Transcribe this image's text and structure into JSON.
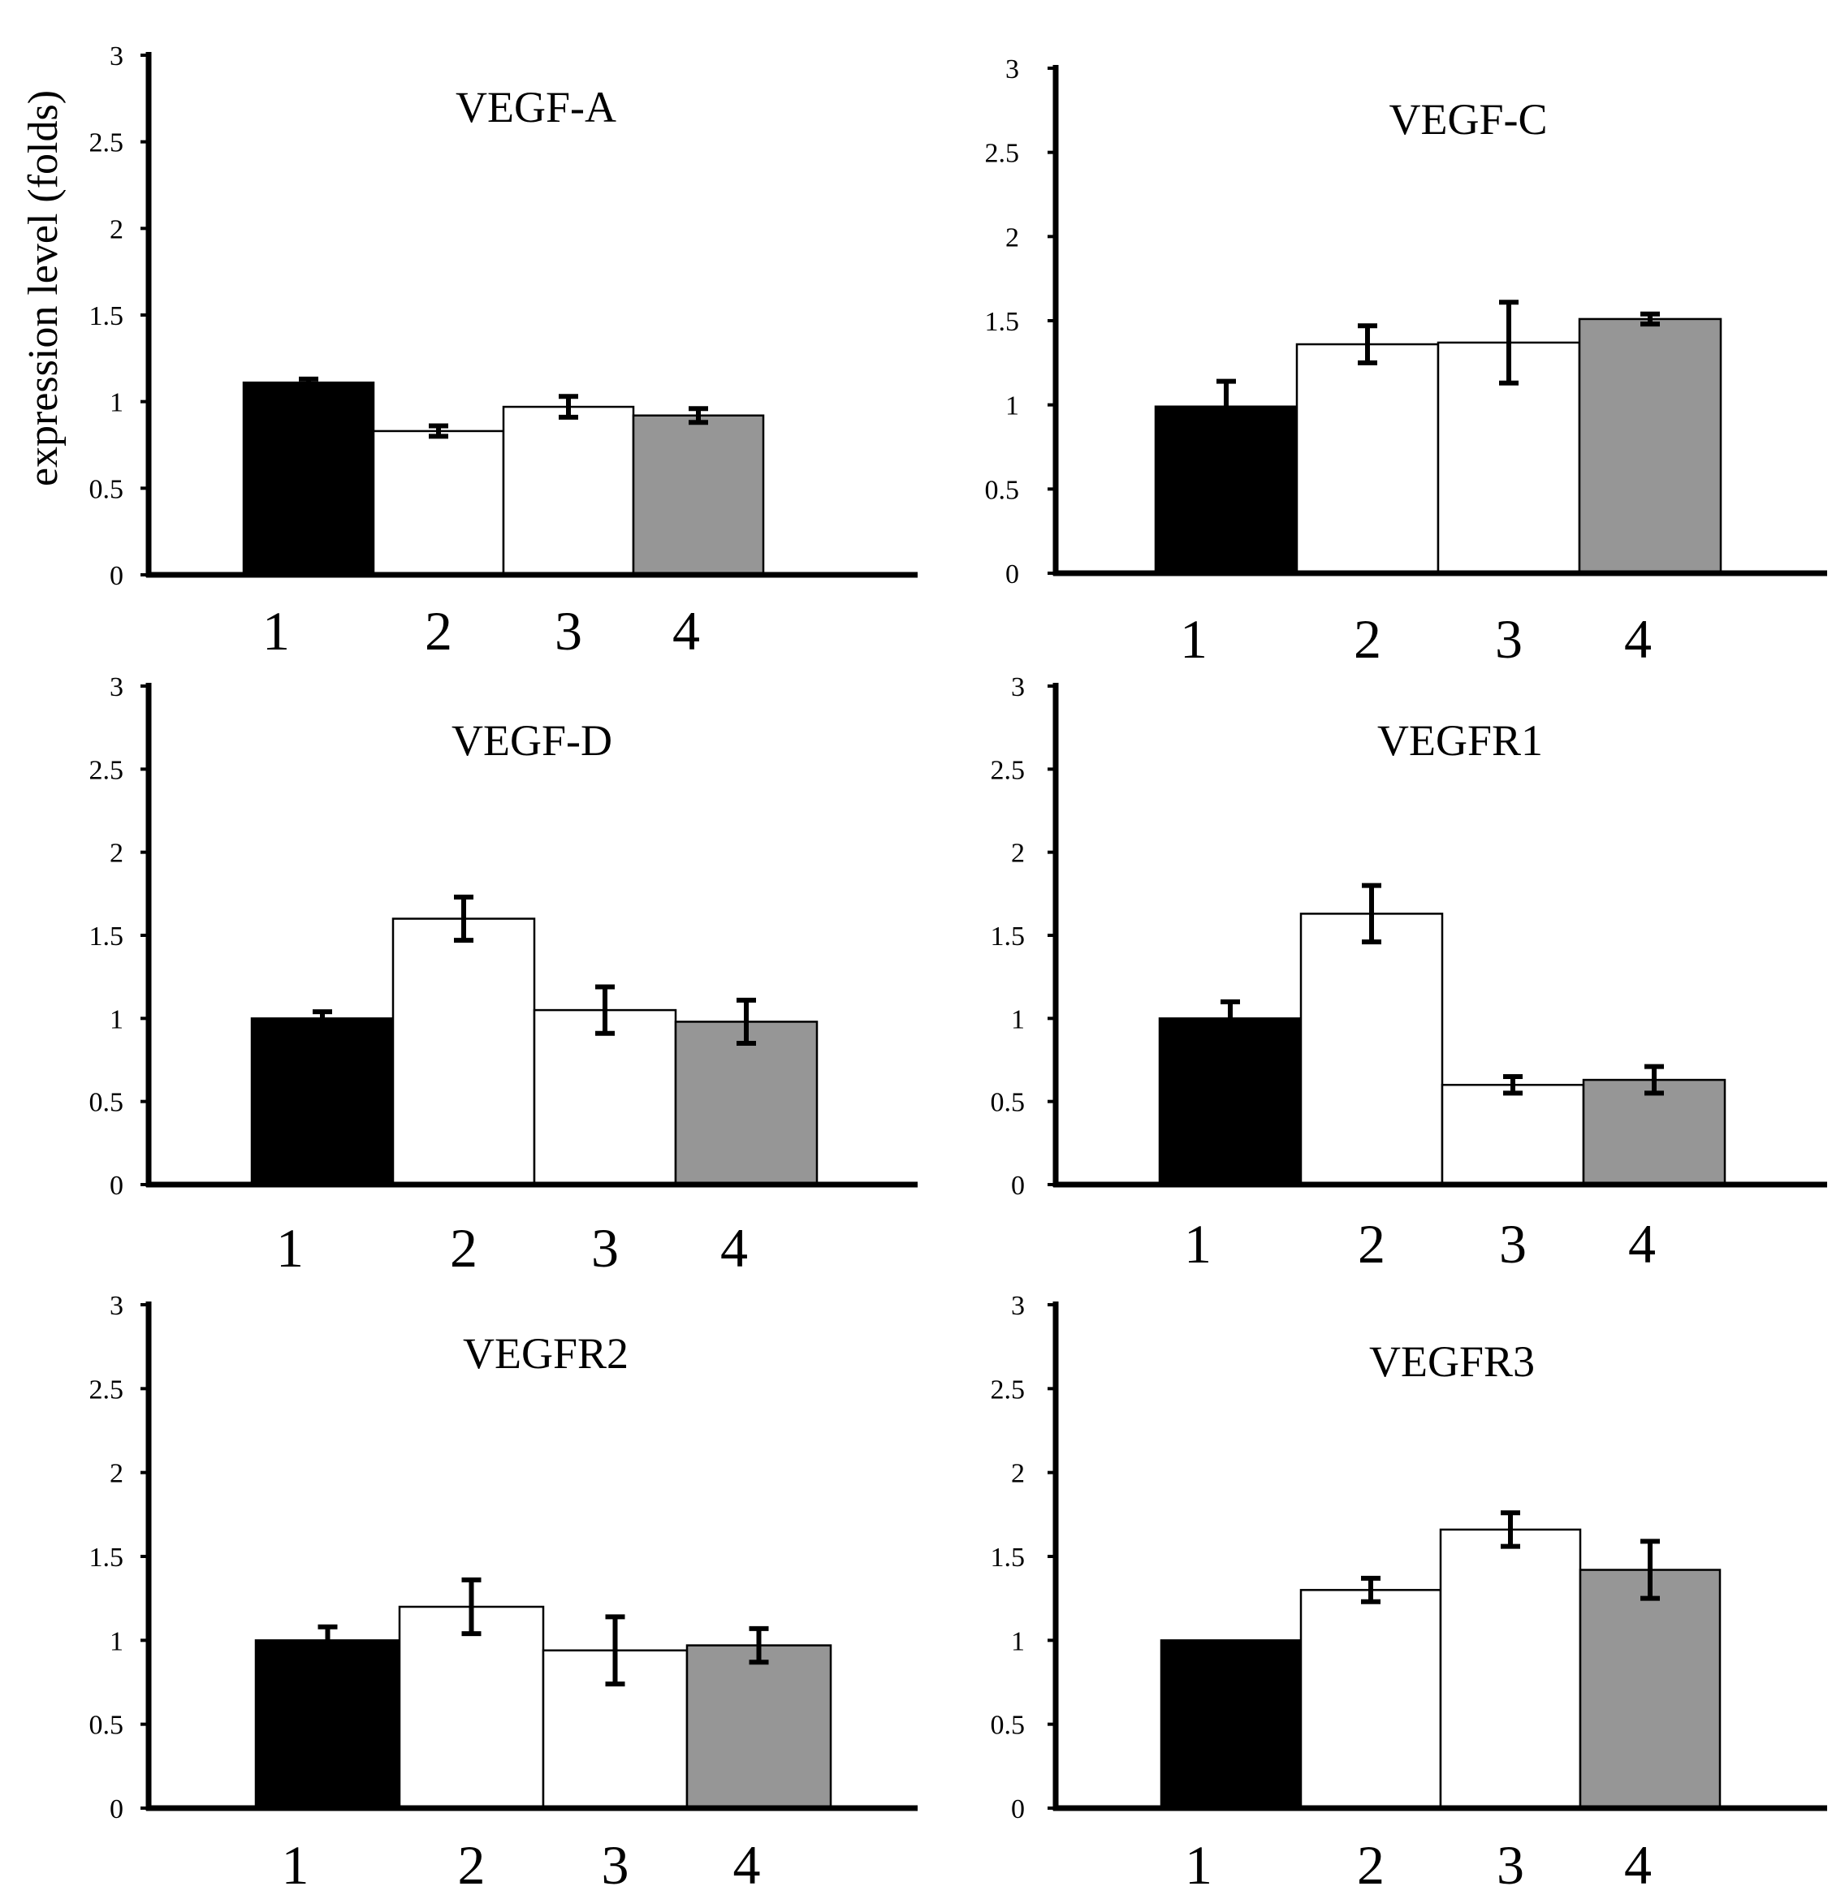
{
  "figure": {
    "ylabel": "expression level (folds)"
  },
  "colors": {
    "axis": "#000000",
    "bar_black": "#000000",
    "bar_white": "#ffffff",
    "bar_gray": "#969696",
    "error": "#000000"
  },
  "chart_data": [
    {
      "type": "bar",
      "title": "VEGF-A",
      "ylabel": "expression level (folds)",
      "categories": [
        "1",
        "2",
        "3",
        "4"
      ],
      "values": [
        1.11,
        0.83,
        0.97,
        0.92
      ],
      "errors": [
        0.02,
        0.03,
        0.06,
        0.04
      ],
      "bar_fills": [
        "black",
        "white",
        "white",
        "gray"
      ],
      "ylim": [
        0,
        3
      ],
      "yticks": [
        "0",
        "0.5",
        "1",
        "1.5",
        "2",
        "2.5",
        "3"
      ]
    },
    {
      "type": "bar",
      "title": "VEGF-C",
      "categories": [
        "1",
        "2",
        "3",
        "4"
      ],
      "values": [
        0.99,
        1.36,
        1.37,
        1.51
      ],
      "errors": [
        0.15,
        0.11,
        0.24,
        0.03
      ],
      "bar_fills": [
        "black",
        "white",
        "white",
        "gray"
      ],
      "ylim": [
        0,
        3
      ],
      "yticks": [
        "0",
        "0.5",
        "1",
        "1.5",
        "2",
        "2.5",
        "3"
      ]
    },
    {
      "type": "bar",
      "title": "VEGF-D",
      "categories": [
        "1",
        "2",
        "3",
        "4"
      ],
      "values": [
        1.0,
        1.6,
        1.05,
        0.98
      ],
      "errors": [
        0.04,
        0.13,
        0.14,
        0.13
      ],
      "bar_fills": [
        "black",
        "white",
        "white",
        "gray"
      ],
      "ylim": [
        0,
        3
      ],
      "yticks": [
        "0",
        "0.5",
        "1",
        "1.5",
        "2",
        "2.5",
        "3"
      ]
    },
    {
      "type": "bar",
      "title": "VEGFR1",
      "categories": [
        "1",
        "2",
        "3",
        "4"
      ],
      "values": [
        1.0,
        1.63,
        0.6,
        0.63
      ],
      "errors": [
        0.1,
        0.17,
        0.05,
        0.08
      ],
      "bar_fills": [
        "black",
        "white",
        "white",
        "gray"
      ],
      "ylim": [
        0,
        3
      ],
      "yticks": [
        "0",
        "0.5",
        "1",
        "1.5",
        "2",
        "2.5",
        "3"
      ]
    },
    {
      "type": "bar",
      "title": "VEGFR2",
      "categories": [
        "1",
        "2",
        "3",
        "4"
      ],
      "values": [
        1.0,
        1.2,
        0.94,
        0.97
      ],
      "errors": [
        0.08,
        0.16,
        0.2,
        0.1
      ],
      "bar_fills": [
        "black",
        "white",
        "white",
        "gray"
      ],
      "ylim": [
        0,
        3
      ],
      "yticks": [
        "0",
        "0.5",
        "1",
        "1.5",
        "2",
        "2.5",
        "3"
      ]
    },
    {
      "type": "bar",
      "title": "VEGFR3",
      "categories": [
        "1",
        "2",
        "3",
        "4"
      ],
      "values": [
        1.0,
        1.3,
        1.66,
        1.42
      ],
      "errors": [
        0.0,
        0.07,
        0.1,
        0.17
      ],
      "bar_fills": [
        "black",
        "white",
        "white",
        "gray"
      ],
      "ylim": [
        0,
        3
      ],
      "yticks": [
        "0",
        "0.5",
        "1",
        "1.5",
        "2",
        "2.5",
        "3"
      ]
    }
  ]
}
